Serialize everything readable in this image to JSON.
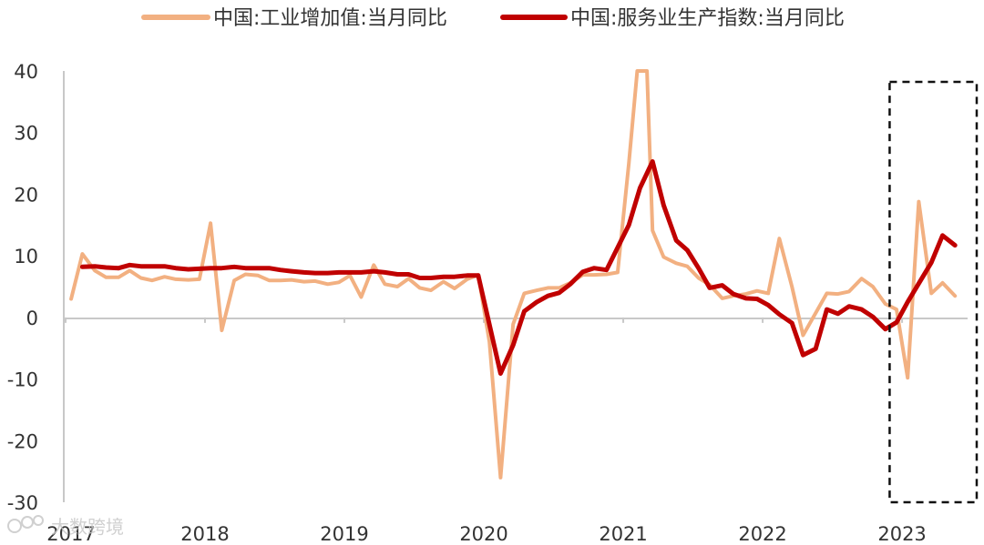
{
  "chart_data": {
    "type": "line",
    "ylim": [
      -30,
      40
    ],
    "yticks": [
      40,
      30,
      20,
      10,
      0,
      -10,
      -20,
      -30
    ],
    "xlim": [
      2017.0,
      2023.47
    ],
    "xticks": [
      {
        "label": "2017",
        "x": 2017
      },
      {
        "label": "2018",
        "x": 2018
      },
      {
        "label": "2019",
        "x": 2019
      },
      {
        "label": "2020",
        "x": 2020
      },
      {
        "label": "2021",
        "x": 2021
      },
      {
        "label": "2022",
        "x": 2022
      },
      {
        "label": "2023",
        "x": 2023
      }
    ],
    "legend_position": "top",
    "grid": false,
    "highlight_box": {
      "x_from": 2022.95,
      "x_to": 2023.47,
      "style": "dashed"
    },
    "watermark": "大数跨境",
    "series": [
      {
        "name": "中国:工业增加值:当月同比",
        "color": "#f2b081",
        "points": [
          [
            2017.04,
            3.0
          ],
          [
            2017.12,
            10.3
          ],
          [
            2017.21,
            7.6
          ],
          [
            2017.29,
            6.5
          ],
          [
            2017.38,
            6.5
          ],
          [
            2017.46,
            7.6
          ],
          [
            2017.54,
            6.4
          ],
          [
            2017.62,
            6.0
          ],
          [
            2017.71,
            6.6
          ],
          [
            2017.79,
            6.2
          ],
          [
            2017.88,
            6.1
          ],
          [
            2017.96,
            6.2
          ],
          [
            2018.04,
            15.3
          ],
          [
            2018.12,
            -2.1
          ],
          [
            2018.21,
            6.0
          ],
          [
            2018.29,
            7.0
          ],
          [
            2018.38,
            6.8
          ],
          [
            2018.46,
            6.0
          ],
          [
            2018.54,
            6.0
          ],
          [
            2018.62,
            6.1
          ],
          [
            2018.71,
            5.8
          ],
          [
            2018.79,
            5.9
          ],
          [
            2018.88,
            5.4
          ],
          [
            2018.96,
            5.7
          ],
          [
            2019.04,
            6.8
          ],
          [
            2019.12,
            3.3
          ],
          [
            2019.21,
            8.5
          ],
          [
            2019.29,
            5.4
          ],
          [
            2019.38,
            5.0
          ],
          [
            2019.46,
            6.3
          ],
          [
            2019.54,
            4.8
          ],
          [
            2019.62,
            4.4
          ],
          [
            2019.71,
            5.8
          ],
          [
            2019.79,
            4.7
          ],
          [
            2019.88,
            6.2
          ],
          [
            2019.96,
            6.9
          ],
          [
            2020.04,
            -4.0
          ],
          [
            2020.12,
            -26.0
          ],
          [
            2020.21,
            -1.1
          ],
          [
            2020.29,
            3.9
          ],
          [
            2020.38,
            4.4
          ],
          [
            2020.46,
            4.8
          ],
          [
            2020.54,
            4.8
          ],
          [
            2020.62,
            5.6
          ],
          [
            2020.71,
            6.9
          ],
          [
            2020.79,
            6.9
          ],
          [
            2020.88,
            7.0
          ],
          [
            2020.96,
            7.3
          ],
          [
            2021.04,
            25.0
          ],
          [
            2021.1,
            40.0
          ],
          [
            2021.17,
            40.0
          ],
          [
            2021.21,
            14.1
          ],
          [
            2021.29,
            9.8
          ],
          [
            2021.38,
            8.8
          ],
          [
            2021.46,
            8.3
          ],
          [
            2021.54,
            6.4
          ],
          [
            2021.62,
            5.3
          ],
          [
            2021.71,
            3.1
          ],
          [
            2021.79,
            3.5
          ],
          [
            2021.88,
            3.8
          ],
          [
            2021.96,
            4.3
          ],
          [
            2022.04,
            3.9
          ],
          [
            2022.12,
            12.8
          ],
          [
            2022.21,
            5.0
          ],
          [
            2022.29,
            -2.9
          ],
          [
            2022.38,
            0.7
          ],
          [
            2022.46,
            3.9
          ],
          [
            2022.54,
            3.8
          ],
          [
            2022.62,
            4.2
          ],
          [
            2022.71,
            6.3
          ],
          [
            2022.79,
            5.0
          ],
          [
            2022.88,
            2.2
          ],
          [
            2022.96,
            1.3
          ],
          [
            2023.04,
            -9.8
          ],
          [
            2023.12,
            18.8
          ],
          [
            2023.21,
            3.9
          ],
          [
            2023.29,
            5.6
          ],
          [
            2023.38,
            3.5
          ]
        ]
      },
      {
        "name": "中国:服务业生产指数:当月同比",
        "color": "#c00000",
        "points": [
          [
            2017.12,
            8.2
          ],
          [
            2017.21,
            8.3
          ],
          [
            2017.29,
            8.1
          ],
          [
            2017.38,
            8.0
          ],
          [
            2017.46,
            8.5
          ],
          [
            2017.54,
            8.3
          ],
          [
            2017.62,
            8.3
          ],
          [
            2017.71,
            8.3
          ],
          [
            2017.79,
            8.0
          ],
          [
            2017.88,
            7.8
          ],
          [
            2017.96,
            7.9
          ],
          [
            2018.04,
            8.0
          ],
          [
            2018.12,
            8.0
          ],
          [
            2018.21,
            8.2
          ],
          [
            2018.29,
            8.0
          ],
          [
            2018.38,
            8.0
          ],
          [
            2018.46,
            8.0
          ],
          [
            2018.54,
            7.7
          ],
          [
            2018.62,
            7.5
          ],
          [
            2018.71,
            7.3
          ],
          [
            2018.79,
            7.2
          ],
          [
            2018.88,
            7.2
          ],
          [
            2018.96,
            7.3
          ],
          [
            2019.04,
            7.3
          ],
          [
            2019.12,
            7.3
          ],
          [
            2019.21,
            7.5
          ],
          [
            2019.29,
            7.3
          ],
          [
            2019.38,
            7.0
          ],
          [
            2019.46,
            7.0
          ],
          [
            2019.54,
            6.4
          ],
          [
            2019.62,
            6.4
          ],
          [
            2019.71,
            6.6
          ],
          [
            2019.79,
            6.6
          ],
          [
            2019.88,
            6.8
          ],
          [
            2019.96,
            6.8
          ],
          [
            2020.12,
            -9.1
          ],
          [
            2020.21,
            -4.5
          ],
          [
            2020.29,
            1.0
          ],
          [
            2020.38,
            2.5
          ],
          [
            2020.46,
            3.5
          ],
          [
            2020.54,
            4.0
          ],
          [
            2020.62,
            5.4
          ],
          [
            2020.71,
            7.4
          ],
          [
            2020.79,
            8.0
          ],
          [
            2020.88,
            7.7
          ],
          [
            2021.04,
            15.0
          ],
          [
            2021.12,
            21.0
          ],
          [
            2021.21,
            25.3
          ],
          [
            2021.29,
            18.2
          ],
          [
            2021.38,
            12.5
          ],
          [
            2021.46,
            10.9
          ],
          [
            2021.54,
            8.0
          ],
          [
            2021.62,
            4.8
          ],
          [
            2021.71,
            5.2
          ],
          [
            2021.79,
            3.8
          ],
          [
            2021.88,
            3.1
          ],
          [
            2021.96,
            3.0
          ],
          [
            2022.04,
            2.0
          ],
          [
            2022.12,
            0.5
          ],
          [
            2022.21,
            -0.9
          ],
          [
            2022.29,
            -6.1
          ],
          [
            2022.38,
            -5.1
          ],
          [
            2022.46,
            1.3
          ],
          [
            2022.54,
            0.6
          ],
          [
            2022.62,
            1.8
          ],
          [
            2022.71,
            1.3
          ],
          [
            2022.79,
            0.1
          ],
          [
            2022.88,
            -1.9
          ],
          [
            2022.96,
            -0.8
          ],
          [
            2023.04,
            2.5
          ],
          [
            2023.12,
            5.5
          ],
          [
            2023.21,
            8.9
          ],
          [
            2023.29,
            13.3
          ],
          [
            2023.38,
            11.7
          ]
        ]
      }
    ]
  }
}
